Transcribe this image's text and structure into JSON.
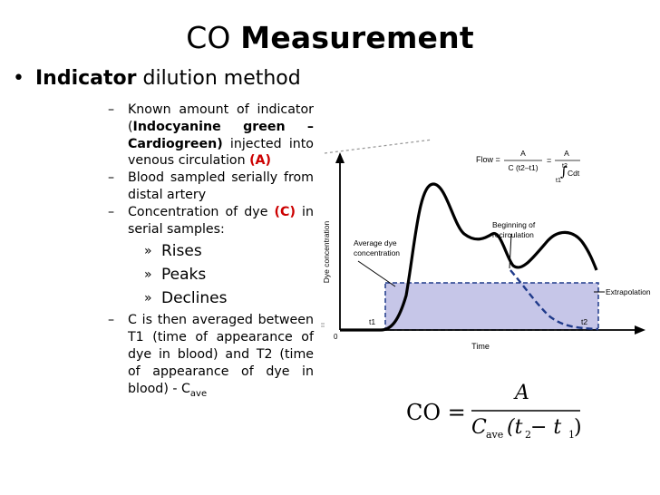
{
  "slide": {
    "title_plain": "CO ",
    "title_bold": "Measurement",
    "bullet_bold": "Indicator",
    "bullet_rest": " dilution method"
  },
  "subs": {
    "s1_a": "Known amount of indicator (",
    "s1_b": "Indocyanine green – Cardiogreen)",
    "s1_c": " injected into venous circulation ",
    "s1_d": "(A)",
    "s2": "Blood sampled serially from distal artery",
    "s3_a": "Concentration of dye ",
    "s3_b": "(C)",
    "s3_c": " in serial samples:",
    "l3": [
      "Rises",
      "Peaks",
      "Declines"
    ],
    "s4_a": "C is then averaged between T1 (time of appearance of dye in blood) and T2 (time of appearance of dye in blood) - C",
    "s4_sub": "ave"
  },
  "figure": {
    "flow_label": "Flow =",
    "A": "A",
    "denom1": "C (t2–t1)",
    "eq": "=",
    "integral_sup": "t2",
    "integral_sub": "t1",
    "cdt": "Cdt",
    "y_axis": "Dye concentration",
    "x_axis": "Time",
    "avg_label": [
      "Average dye",
      "concentration"
    ],
    "recirc_label": [
      "Beginning of",
      "recirculation"
    ],
    "extrapolation": "Extrapolation",
    "t1": "t1",
    "t2": "t2",
    "zero": "0"
  },
  "formula": {
    "lhs": "CO =",
    "num": "A",
    "den_c": "C",
    "den_sub": "ave",
    "den_rest": "(t",
    "t2": "2",
    "minus": " − t",
    "t1": "1",
    "close": ")"
  },
  "colors": {
    "red": "#cc0000",
    "shade": "#c6c6e8",
    "dashed": "#1f3a8a"
  }
}
